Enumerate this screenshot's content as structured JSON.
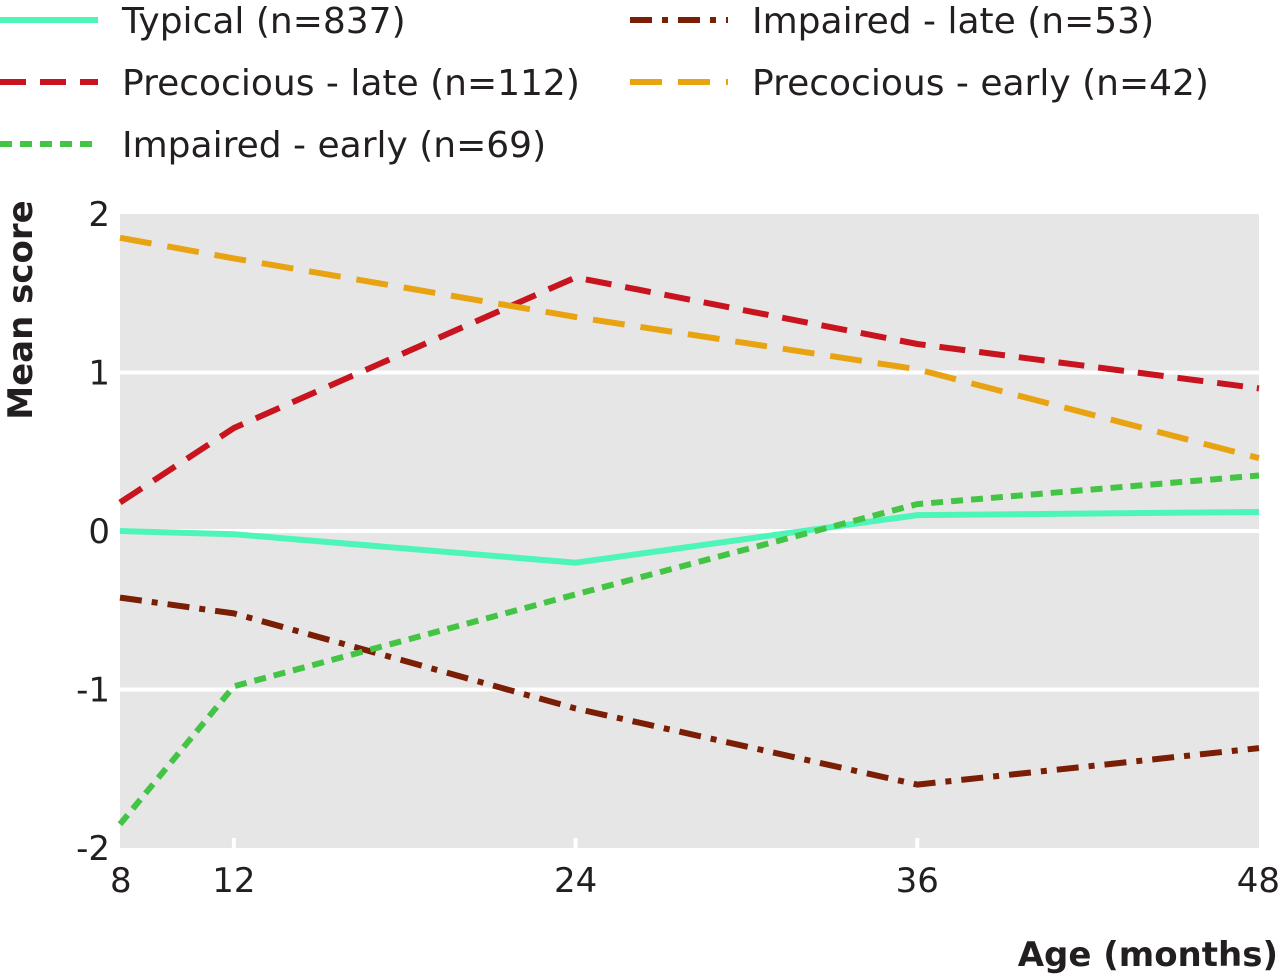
{
  "chart_data": {
    "type": "line",
    "xlabel": "Age (months)",
    "ylabel": "Mean score",
    "x": [
      8,
      12,
      24,
      36,
      48
    ],
    "x_ticks": [
      "8",
      "12",
      "24",
      "36",
      "48"
    ],
    "y_ticks": [
      "-2",
      "-1",
      "0",
      "1",
      "2"
    ],
    "xlim": [
      8,
      48
    ],
    "ylim": [
      -2,
      2
    ],
    "grid": "horizontal",
    "legend_position": "top",
    "background": "#e6e6e6",
    "series": [
      {
        "name": "Typical (n=837)",
        "color": "#4ef5b9",
        "dash": "solid",
        "values": [
          0.0,
          -0.02,
          -0.2,
          0.1,
          0.12
        ]
      },
      {
        "name": "Impaired - late (n=53)",
        "color": "#7a1e05",
        "dash": "dashdot",
        "values": [
          -0.42,
          -0.52,
          -1.12,
          -1.6,
          -1.37
        ]
      },
      {
        "name": "Precocious - late (n=112)",
        "color": "#c8141e",
        "dash": "dashed",
        "values": [
          0.18,
          0.65,
          1.6,
          1.18,
          0.9
        ]
      },
      {
        "name": "Precocious - early (n=42)",
        "color": "#e8a312",
        "dash": "longdash",
        "values": [
          1.85,
          1.72,
          1.35,
          1.02,
          0.46
        ]
      },
      {
        "name": "Impaired - early (n=69)",
        "color": "#44c444",
        "dash": "dotted",
        "values": [
          -1.85,
          -0.98,
          -0.4,
          0.17,
          0.35
        ]
      }
    ]
  }
}
